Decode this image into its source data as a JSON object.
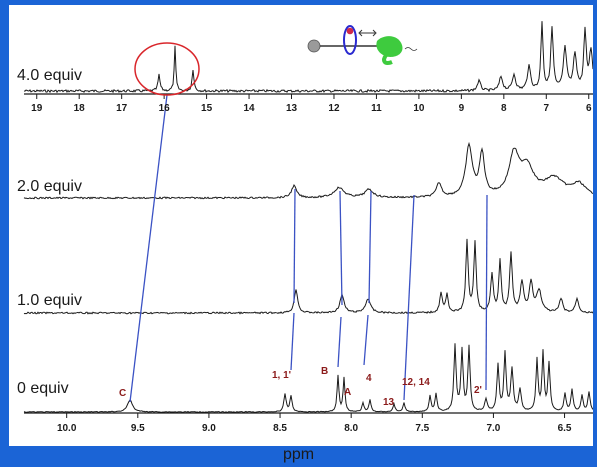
{
  "chart_data": {
    "type": "line",
    "xlabel": "ppm",
    "top_axis": {
      "ticks": [
        "19",
        "18",
        "17",
        "16",
        "15",
        "14",
        "13",
        "12",
        "11",
        "10",
        "9",
        "8",
        "7",
        "6"
      ],
      "range": [
        19.3,
        5.9
      ]
    },
    "bottom_axis": {
      "ticks": [
        "10.0",
        "9.5",
        "9.0",
        "8.5",
        "8.0",
        "7.5",
        "7.0",
        "6.5"
      ],
      "range": [
        10.3,
        6.3
      ]
    },
    "series": [
      {
        "name": "4.0 equiv"
      },
      {
        "name": "2.0 equiv"
      },
      {
        "name": "1.0 equiv"
      },
      {
        "name": "0 equiv"
      }
    ],
    "peak_labels": [
      "C",
      "1, 1'",
      "B",
      "A",
      "4",
      "13",
      "12, 14",
      "2'"
    ],
    "colors": {
      "frame": "#1b64d6",
      "trace": "#1a1a1a",
      "correlation_line": "#3b52c4",
      "highlight_circle": "#d9262b",
      "peak_label": "#8b1a1a"
    }
  }
}
